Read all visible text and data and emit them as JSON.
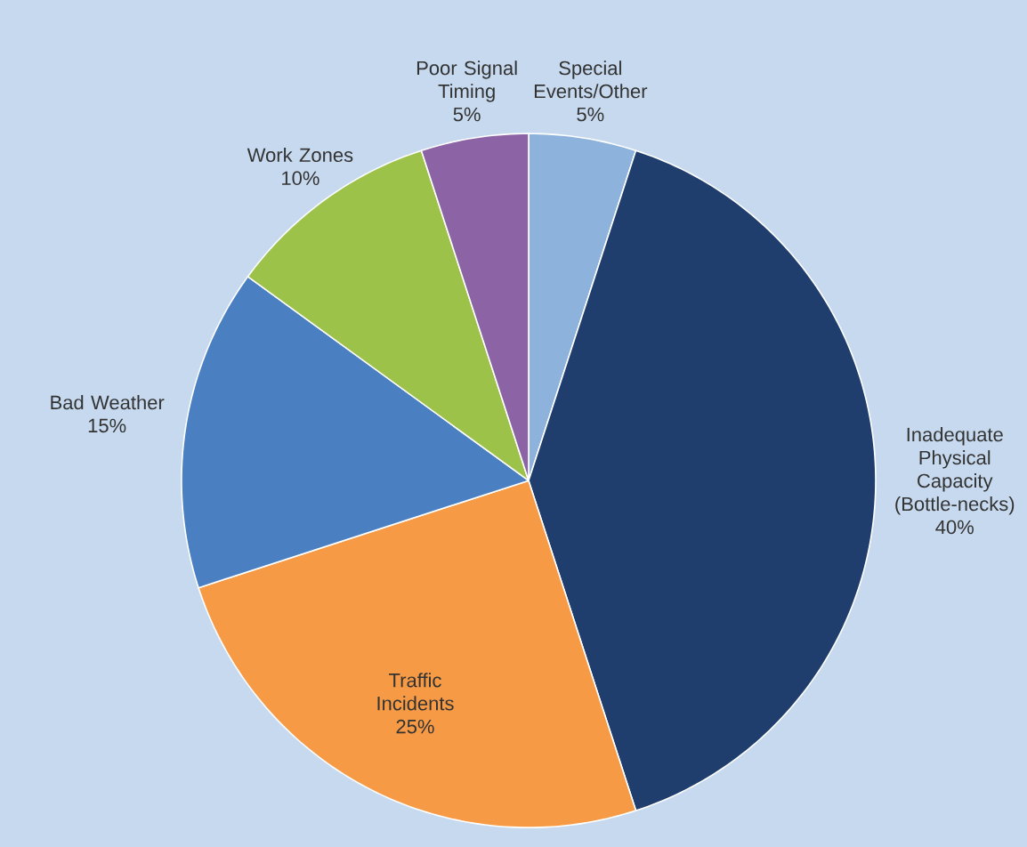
{
  "chart_data": {
    "type": "pie",
    "categories": [
      "Special Events/Other",
      "Inadequate Physical Capacity (Bottle-necks)",
      "Traffic Incidents",
      "Bad Weather",
      "Work Zones",
      "Poor Signal Timing"
    ],
    "values": [
      5,
      40,
      25,
      15,
      10,
      5
    ],
    "value_labels": [
      "5%",
      "40%",
      "25%",
      "15%",
      "10%",
      "5%"
    ],
    "colors": [
      "#8db3dd",
      "#1f3e6e",
      "#f79a45",
      "#4a7fc1",
      "#9cc24a",
      "#8c64a6"
    ]
  }
}
